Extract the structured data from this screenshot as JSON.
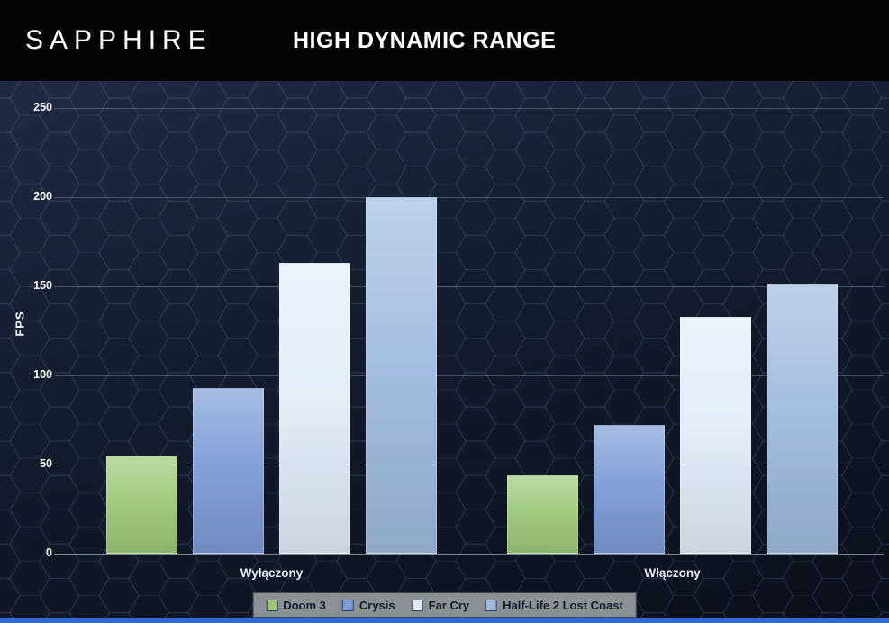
{
  "header": {
    "logo": "SAPPHIRE",
    "title": "HIGH DYNAMIC RANGE"
  },
  "colors": {
    "header_background": "#040404",
    "chart_background_top": "#1e2b44",
    "chart_background_bottom": "#0a0f1a",
    "legend_background": "#8b9095",
    "bottom_accent": "#2b6cd9"
  },
  "chart_data": {
    "type": "bar",
    "title": "HIGH DYNAMIC RANGE",
    "categories": [
      "Wyłączony",
      "Włączony"
    ],
    "series": [
      {
        "name": "Doom 3",
        "color": "#9cc878",
        "values": [
          55,
          44
        ]
      },
      {
        "name": "Crysis",
        "color": "#7c9bd6",
        "values": [
          93,
          72
        ]
      },
      {
        "name": "Far Cry",
        "color": "#e2ecf8",
        "values": [
          163,
          133
        ]
      },
      {
        "name": "Half-Life 2 Lost Coast",
        "color": "#9fbadf",
        "values": [
          200,
          151
        ]
      }
    ],
    "xlabel": "",
    "ylabel": "FPS",
    "ylim": [
      0,
      250
    ],
    "yticks": [
      0,
      50,
      100,
      150,
      200,
      250
    ],
    "grid": true,
    "legend_position": "bottom"
  }
}
